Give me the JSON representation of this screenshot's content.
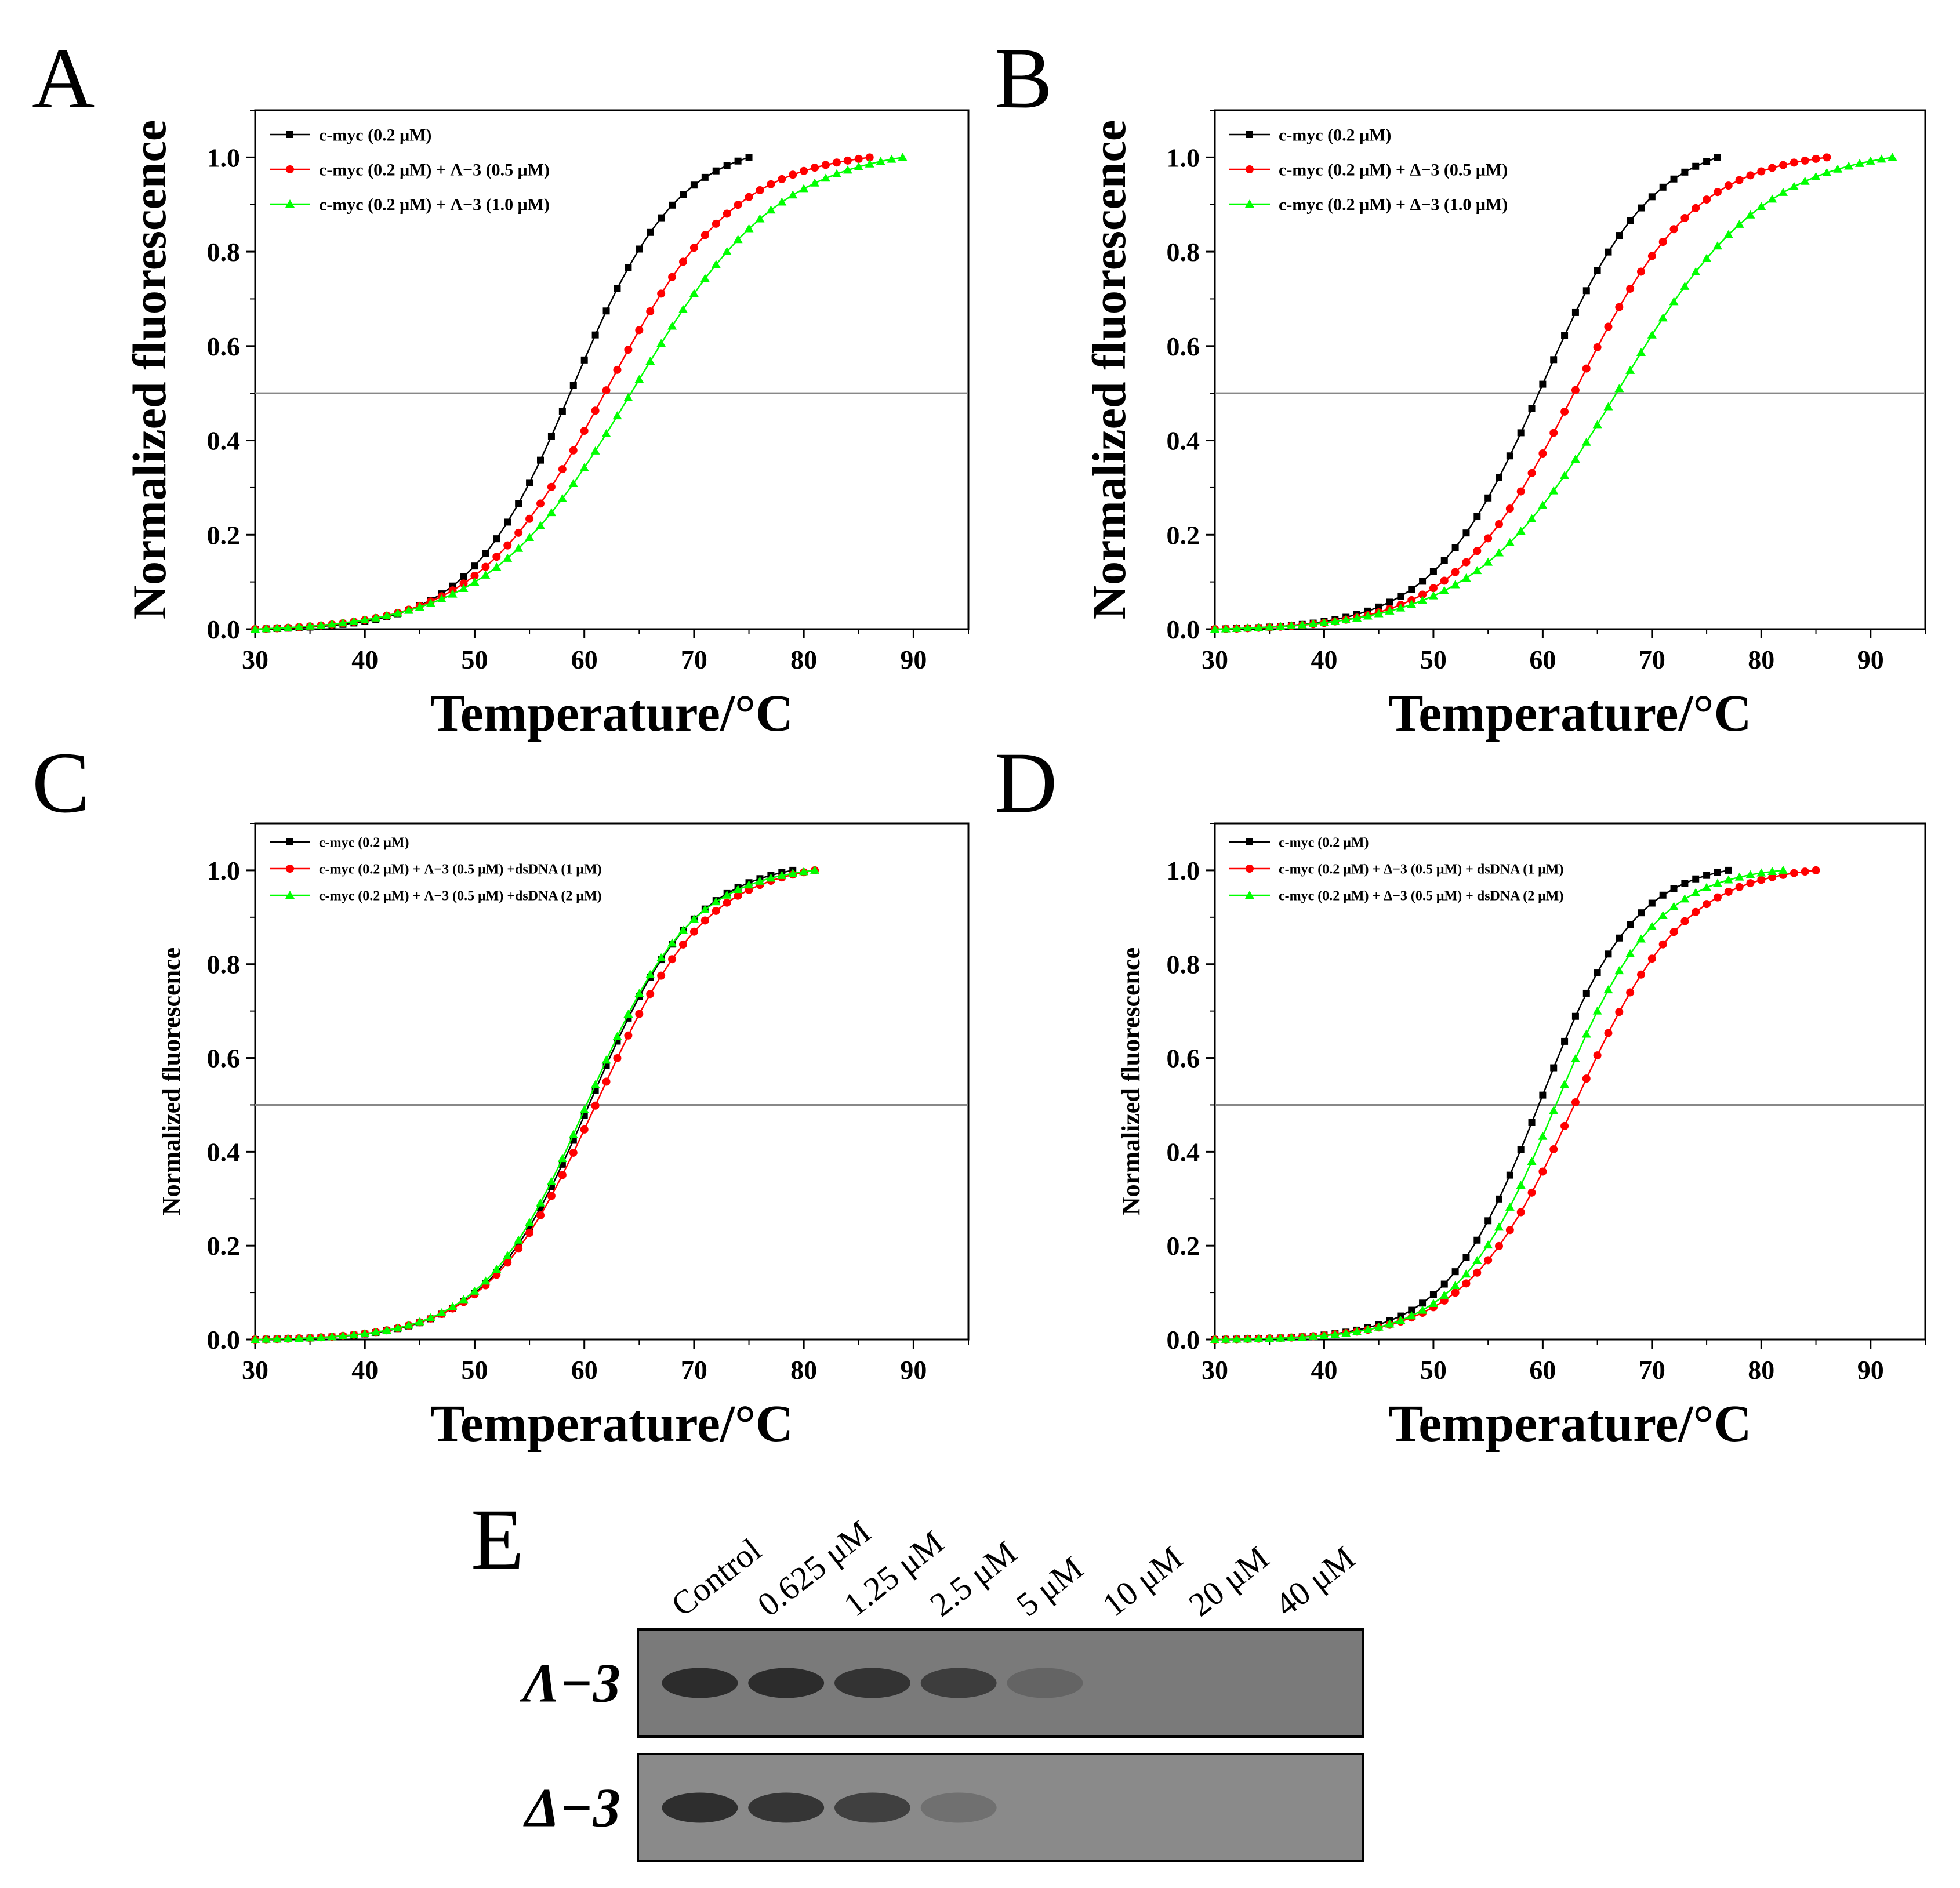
{
  "chart_data": [
    {
      "panel": "A",
      "type": "line",
      "xlabel": "Temperature/°C",
      "ylabel": "Normalized fluorescence",
      "xlim": [
        30,
        95
      ],
      "ylim": [
        0,
        1.1
      ],
      "xticks": [
        30,
        40,
        50,
        60,
        70,
        80,
        90
      ],
      "yticks": [
        0.0,
        0.2,
        0.4,
        0.6,
        0.8,
        1.0
      ],
      "reference_line_y": 0.5,
      "legend_position": "top-left",
      "series": [
        {
          "name": "c-myc (0.2 μM)",
          "color": "#000000",
          "marker": "square",
          "tm": 59,
          "k": 0.21,
          "x_end": 75
        },
        {
          "name": "c-myc (0.2 μM) + Λ−3 (0.5 μM)",
          "color": "#ff0000",
          "marker": "circle",
          "tm": 62,
          "k": 0.17,
          "x_end": 86
        },
        {
          "name": "c-myc (0.2 μM) + Λ−3 (1.0 μM)",
          "color": "#00ff00",
          "marker": "triangle",
          "tm": 64.5,
          "k": 0.15,
          "x_end": 89
        }
      ]
    },
    {
      "panel": "B",
      "type": "line",
      "xlabel": "Temperature/°C",
      "ylabel": "Normalized fluorescence",
      "xlim": [
        30,
        95
      ],
      "ylim": [
        0,
        1.1
      ],
      "xticks": [
        30,
        40,
        50,
        60,
        70,
        80,
        90
      ],
      "yticks": [
        0.0,
        0.2,
        0.4,
        0.6,
        0.8,
        1.0
      ],
      "reference_line_y": 0.5,
      "legend_position": "top-left",
      "series": [
        {
          "name": "c-myc (0.2 μM)",
          "color": "#000000",
          "marker": "square",
          "tm": 60,
          "k": 0.2,
          "x_end": 76
        },
        {
          "name": "c-myc (0.2 μM) + Δ−3 (0.5 μM)",
          "color": "#ff0000",
          "marker": "circle",
          "tm": 63,
          "k": 0.18,
          "x_end": 86
        },
        {
          "name": "c-myc (0.2 μM) + Δ−3 (1.0 μM)",
          "color": "#00ff00",
          "marker": "triangle",
          "tm": 67,
          "k": 0.15,
          "x_end": 92
        }
      ]
    },
    {
      "panel": "C",
      "type": "line",
      "xlabel": "Temperature/°C",
      "ylabel": "Normalized fluorescence",
      "xlim": [
        30,
        95
      ],
      "ylim": [
        0,
        1.1
      ],
      "xticks": [
        30,
        40,
        50,
        60,
        70,
        80,
        90
      ],
      "yticks": [
        0.0,
        0.2,
        0.4,
        0.6,
        0.8,
        1.0
      ],
      "reference_line_y": 0.5,
      "legend_position": "top-left",
      "series": [
        {
          "name": "c-myc (0.2 μM)",
          "color": "#000000",
          "marker": "square",
          "tm": 60.6,
          "k": 0.21,
          "x_end": 79
        },
        {
          "name": "c-myc (0.2 μM) + Λ−3 (0.5 μM) +dsDNA (1 μM)",
          "color": "#ff0000",
          "marker": "circle",
          "tm": 61.2,
          "k": 0.2,
          "x_end": 81
        },
        {
          "name": "c-myc (0.2 μM) + Λ−3 (0.5 μM) +dsDNA (2 μM)",
          "color": "#00ff00",
          "marker": "triangle",
          "tm": 60.3,
          "k": 0.21,
          "x_end": 81
        }
      ]
    },
    {
      "panel": "D",
      "type": "line",
      "xlabel": "Temperature/°C",
      "ylabel": "Normalized fluorescence",
      "xlim": [
        30,
        95
      ],
      "ylim": [
        0,
        1.1
      ],
      "xticks": [
        30,
        40,
        50,
        60,
        70,
        80,
        90
      ],
      "yticks": [
        0.0,
        0.2,
        0.4,
        0.6,
        0.8,
        1.0
      ],
      "reference_line_y": 0.5,
      "legend_position": "top-left",
      "series": [
        {
          "name": "c-myc (0.2 μM)",
          "color": "#000000",
          "marker": "square",
          "tm": 59.8,
          "k": 0.23,
          "x_end": 77
        },
        {
          "name": "c-myc (0.2 μM) + Δ−3 (0.5 μM) + dsDNA (1 μM)",
          "color": "#ff0000",
          "marker": "circle",
          "tm": 63,
          "k": 0.2,
          "x_end": 85
        },
        {
          "name": "c-myc (0.2 μM) + Δ−3 (0.5 μM) + dsDNA (2 μM)",
          "color": "#00ff00",
          "marker": "triangle",
          "tm": 61.3,
          "k": 0.22,
          "x_end": 82
        }
      ]
    }
  ],
  "panel_letters": [
    "A",
    "B",
    "C",
    "D",
    "E"
  ],
  "gel": {
    "panel": "E",
    "lanes": [
      "Control",
      "0.625 μM",
      "1.25 μM",
      "2.5 μM",
      "5 μM",
      "10 μM",
      "20 μM",
      "40 μM"
    ],
    "rows": [
      {
        "label": "Λ−3",
        "band_intensity": [
          0.85,
          0.85,
          0.8,
          0.72,
          0.35,
          0.0,
          0.0,
          0.0
        ]
      },
      {
        "label": "Δ−3",
        "band_intensity": [
          0.85,
          0.8,
          0.72,
          0.3,
          0.0,
          0.0,
          0.0,
          0.0
        ]
      }
    ]
  }
}
